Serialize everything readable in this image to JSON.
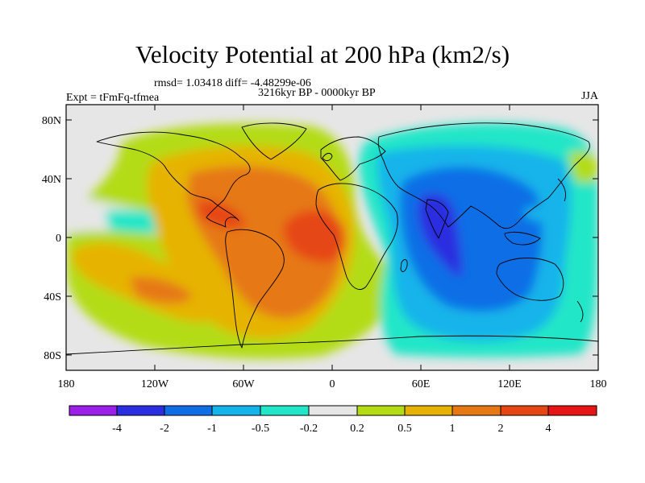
{
  "title": "Velocity Potential at 200 hPa (km2/s)",
  "stats": "rmsd= 1.03418 diff= -4.48299e-06",
  "period": "3216kyr BP - 0000kyr BP",
  "experiment": "Expt = tFmFq-tfmea",
  "season": "JJA",
  "axes": {
    "lat_ticks": [
      "80N",
      "40N",
      "0",
      "40S",
      "80S"
    ],
    "lon_ticks": [
      "180",
      "120W",
      "60W",
      "0",
      "60E",
      "120E",
      "180"
    ]
  },
  "colors": {
    "background_fill": "#e6e6e6",
    "coastline": "#000000",
    "levels": [
      "#9b1fe8",
      "#2b2ee0",
      "#0f6ee6",
      "#14b4ea",
      "#22e6c8",
      "#e6e6e6",
      "#b4dc14",
      "#e6b400",
      "#e67814",
      "#e64614",
      "#e61414"
    ]
  },
  "colorbar": {
    "labels": [
      "-4",
      "-2",
      "-1",
      "-0.5",
      "-0.2",
      "0.2",
      "0.5",
      "1",
      "2",
      "4"
    ]
  },
  "chart_data": {
    "type": "filled-contour-map",
    "variable": "Velocity Potential",
    "level": "200 hPa",
    "units": "km2/s",
    "projection": "cylindrical equidistant",
    "lon_range": [
      -180,
      180
    ],
    "lat_range": [
      -90,
      90
    ],
    "contour_levels": [
      -4,
      -2,
      -1,
      -0.5,
      -0.2,
      0.2,
      0.5,
      1,
      2,
      4
    ],
    "regions": [
      {
        "name": "western-hemisphere-positive",
        "center": [
          -40,
          10
        ],
        "range": "0.2 to 4"
      },
      {
        "name": "atlantic-max",
        "center": [
          -15,
          0
        ],
        "range": "2 to 4"
      },
      {
        "name": "caribbean-max",
        "center": [
          -70,
          15
        ],
        "range": "2 to 4"
      },
      {
        "name": "south-pacific-lobe",
        "center": [
          -150,
          -25
        ],
        "range": "1 to 2"
      },
      {
        "name": "north-pacific-negative",
        "center": [
          -140,
          20
        ],
        "range": "-0.5 to -0.2"
      },
      {
        "name": "eastern-hemisphere-negative",
        "center": [
          90,
          0
        ],
        "range": "-4 to -0.2"
      },
      {
        "name": "indian-ocean-min",
        "center": [
          80,
          0
        ],
        "range": "-4 to -2"
      }
    ]
  }
}
